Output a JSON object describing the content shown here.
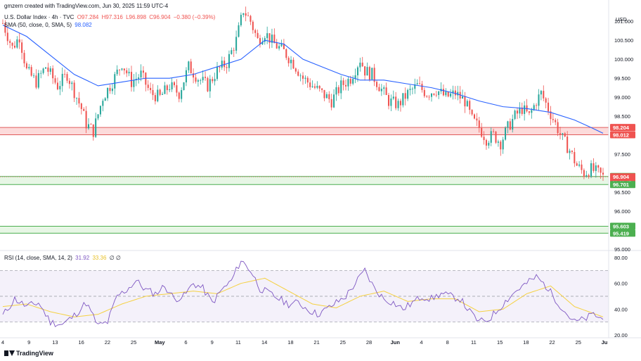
{
  "header": {
    "author_line": "gmzern created with TradingView.com, Jun 30, 2025 11:59 UTC-4",
    "symbol": "U.S. Dollar Index · 4h · TVC",
    "ohlc": {
      "o": "O97.284",
      "h": "H97.316",
      "l": "L96.898",
      "c": "C96.904",
      "chg": "−0.380 (−0.39%)"
    },
    "sma_label": "SMA (50, close, 0, SMA, 5)",
    "sma_value": "98.082",
    "rsi_label": "RSI (14, close, SMA, 14, 2)",
    "rsi_value": "31.92",
    "rsi_ma_value": "33.36",
    "rsi_extra": "∅ ∅"
  },
  "footer": {
    "brand": "TradingView"
  },
  "colors": {
    "up": "#26a69a",
    "down": "#ef5350",
    "sma": "#2962ff",
    "rsi": "#7e57c2",
    "rsi_ma": "#f5d142",
    "resistance_fill": "#fbd5d5",
    "resistance_line": "#e05b5b",
    "support_fill": "#e3f4e1",
    "support_line": "#4caf50"
  },
  "chart_data": [
    {
      "type": "candlestick",
      "title": "U.S. Dollar Index · 4h · TVC",
      "currency_label": "USD",
      "ylim": [
        95.0,
        101.3
      ],
      "y_ticks": [
        "101.000",
        "100.500",
        "100.000",
        "99.500",
        "99.000",
        "98.500",
        "97.500",
        "96.500",
        "96.000",
        "95.000"
      ],
      "x_ticks": [
        "4",
        "9",
        "13",
        "16",
        "22",
        "25",
        "May",
        "6",
        "9",
        "11",
        "14",
        "18",
        "21",
        "25",
        "28",
        "Jun",
        "4",
        "8",
        "11",
        "15",
        "18",
        "22",
        "25",
        "Ju"
      ],
      "price_tags": [
        {
          "label": "98.204",
          "value": 98.204,
          "color": "#ef5350"
        },
        {
          "label": "98.012",
          "value": 98.012,
          "color": "#ef5350"
        },
        {
          "label": "96.914",
          "value": 96.914,
          "color": "#4caf50"
        },
        {
          "label": "96.904",
          "sub": "01:00:47",
          "value": 96.904,
          "color": "#ef5350"
        },
        {
          "label": "96.701",
          "value": 96.701,
          "color": "#4caf50"
        },
        {
          "label": "95.603",
          "value": 95.603,
          "color": "#4caf50"
        },
        {
          "label": "95.419",
          "value": 95.419,
          "color": "#4caf50"
        }
      ],
      "zones": [
        {
          "kind": "resistance",
          "from": 98.012,
          "to": 98.204
        },
        {
          "kind": "support",
          "from": 96.701,
          "to": 96.914
        },
        {
          "kind": "support",
          "from": 95.419,
          "to": 95.603
        }
      ],
      "close_path": [
        [
          0,
          100.95
        ],
        [
          4,
          100.3
        ],
        [
          7,
          100.6
        ],
        [
          10,
          99.7
        ],
        [
          14,
          99.4
        ],
        [
          18,
          99.8
        ],
        [
          23,
          99.3
        ],
        [
          27,
          99.6
        ],
        [
          31,
          99.0
        ],
        [
          33,
          98.7
        ],
        [
          35,
          98.3
        ],
        [
          38,
          98.1
        ],
        [
          42,
          99.0
        ],
        [
          46,
          99.4
        ],
        [
          50,
          99.9
        ],
        [
          54,
          99.4
        ],
        [
          58,
          99.6
        ],
        [
          62,
          99.1
        ],
        [
          66,
          99.0
        ],
        [
          70,
          99.3
        ],
        [
          74,
          99.1
        ],
        [
          78,
          99.8
        ],
        [
          82,
          99.5
        ],
        [
          86,
          99.3
        ],
        [
          90,
          99.7
        ],
        [
          94,
          99.9
        ],
        [
          98,
          100.5
        ],
        [
          101,
          101.3
        ],
        [
          104,
          101.0
        ],
        [
          107,
          100.5
        ],
        [
          110,
          100.7
        ],
        [
          114,
          100.4
        ],
        [
          118,
          100.2
        ],
        [
          122,
          99.9
        ],
        [
          126,
          99.5
        ],
        [
          130,
          99.3
        ],
        [
          134,
          99.1
        ],
        [
          138,
          98.9
        ],
        [
          142,
          99.3
        ],
        [
          146,
          99.5
        ],
        [
          150,
          100.0
        ],
        [
          152,
          99.7
        ],
        [
          155,
          99.6
        ],
        [
          158,
          99.3
        ],
        [
          162,
          98.9
        ],
        [
          166,
          98.8
        ],
        [
          170,
          99.1
        ],
        [
          174,
          99.3
        ],
        [
          178,
          99.1
        ],
        [
          182,
          99.2
        ],
        [
          186,
          99.0
        ],
        [
          190,
          99.1
        ],
        [
          194,
          98.9
        ],
        [
          197,
          98.4
        ],
        [
          200,
          98.2
        ],
        [
          203,
          97.9
        ],
        [
          206,
          98.0
        ],
        [
          209,
          97.8
        ],
        [
          212,
          98.2
        ],
        [
          215,
          98.5
        ],
        [
          218,
          98.7
        ],
        [
          221,
          98.5
        ],
        [
          224,
          98.9
        ],
        [
          226,
          99.1
        ],
        [
          229,
          98.7
        ],
        [
          232,
          98.3
        ],
        [
          235,
          97.9
        ],
        [
          238,
          97.6
        ],
        [
          241,
          97.2
        ],
        [
          244,
          97.0
        ],
        [
          247,
          97.1
        ],
        [
          250,
          97.0
        ],
        [
          252,
          96.9
        ]
      ],
      "sma_points": [
        [
          0,
          100.9
        ],
        [
          10,
          100.6
        ],
        [
          20,
          100.1
        ],
        [
          30,
          99.6
        ],
        [
          40,
          99.3
        ],
        [
          50,
          99.4
        ],
        [
          60,
          99.5
        ],
        [
          70,
          99.5
        ],
        [
          80,
          99.6
        ],
        [
          90,
          99.8
        ],
        [
          100,
          100.0
        ],
        [
          110,
          100.5
        ],
        [
          118,
          100.4
        ],
        [
          126,
          100.0
        ],
        [
          134,
          99.8
        ],
        [
          142,
          99.6
        ],
        [
          150,
          99.45
        ],
        [
          160,
          99.45
        ],
        [
          170,
          99.35
        ],
        [
          180,
          99.25
        ],
        [
          190,
          99.1
        ],
        [
          200,
          98.9
        ],
        [
          210,
          98.75
        ],
        [
          220,
          98.7
        ],
        [
          230,
          98.6
        ],
        [
          240,
          98.4
        ],
        [
          247,
          98.2
        ],
        [
          252,
          98.05
        ]
      ]
    },
    {
      "type": "line",
      "title": "RSI (14, close, SMA, 14, 2)",
      "ylim": [
        20,
        80
      ],
      "y_ticks": [
        "80.00",
        "60.00",
        "40.00",
        "20.00"
      ],
      "levels": [
        70,
        50,
        30
      ],
      "rsi_points": [
        [
          0,
          35
        ],
        [
          5,
          48
        ],
        [
          10,
          42
        ],
        [
          15,
          45
        ],
        [
          20,
          30
        ],
        [
          25,
          28
        ],
        [
          30,
          35
        ],
        [
          35,
          45
        ],
        [
          40,
          27
        ],
        [
          44,
          30
        ],
        [
          48,
          50
        ],
        [
          52,
          55
        ],
        [
          56,
          62
        ],
        [
          60,
          55
        ],
        [
          64,
          52
        ],
        [
          68,
          58
        ],
        [
          72,
          48
        ],
        [
          76,
          50
        ],
        [
          80,
          60
        ],
        [
          84,
          56
        ],
        [
          88,
          45
        ],
        [
          92,
          55
        ],
        [
          96,
          62
        ],
        [
          100,
          78
        ],
        [
          104,
          70
        ],
        [
          108,
          56
        ],
        [
          112,
          52
        ],
        [
          116,
          48
        ],
        [
          120,
          44
        ],
        [
          124,
          45
        ],
        [
          128,
          40
        ],
        [
          132,
          36
        ],
        [
          136,
          40
        ],
        [
          140,
          45
        ],
        [
          144,
          50
        ],
        [
          148,
          60
        ],
        [
          152,
          70
        ],
        [
          156,
          56
        ],
        [
          160,
          48
        ],
        [
          164,
          45
        ],
        [
          168,
          40
        ],
        [
          172,
          45
        ],
        [
          176,
          50
        ],
        [
          180,
          48
        ],
        [
          184,
          52
        ],
        [
          188,
          50
        ],
        [
          192,
          48
        ],
        [
          196,
          38
        ],
        [
          200,
          30
        ],
        [
          204,
          32
        ],
        [
          208,
          40
        ],
        [
          212,
          48
        ],
        [
          216,
          55
        ],
        [
          220,
          60
        ],
        [
          224,
          65
        ],
        [
          228,
          58
        ],
        [
          232,
          48
        ],
        [
          236,
          38
        ],
        [
          240,
          30
        ],
        [
          244,
          32
        ],
        [
          248,
          36
        ],
        [
          252,
          32
        ]
      ],
      "rsi_ma_points": [
        [
          0,
          42
        ],
        [
          10,
          44
        ],
        [
          20,
          38
        ],
        [
          30,
          34
        ],
        [
          40,
          36
        ],
        [
          50,
          44
        ],
        [
          60,
          50
        ],
        [
          70,
          52
        ],
        [
          80,
          54
        ],
        [
          90,
          52
        ],
        [
          100,
          60
        ],
        [
          110,
          64
        ],
        [
          120,
          54
        ],
        [
          130,
          44
        ],
        [
          140,
          41
        ],
        [
          150,
          50
        ],
        [
          160,
          54
        ],
        [
          170,
          46
        ],
        [
          180,
          48
        ],
        [
          190,
          48
        ],
        [
          200,
          38
        ],
        [
          210,
          40
        ],
        [
          220,
          52
        ],
        [
          230,
          58
        ],
        [
          240,
          42
        ],
        [
          252,
          34
        ]
      ]
    }
  ]
}
